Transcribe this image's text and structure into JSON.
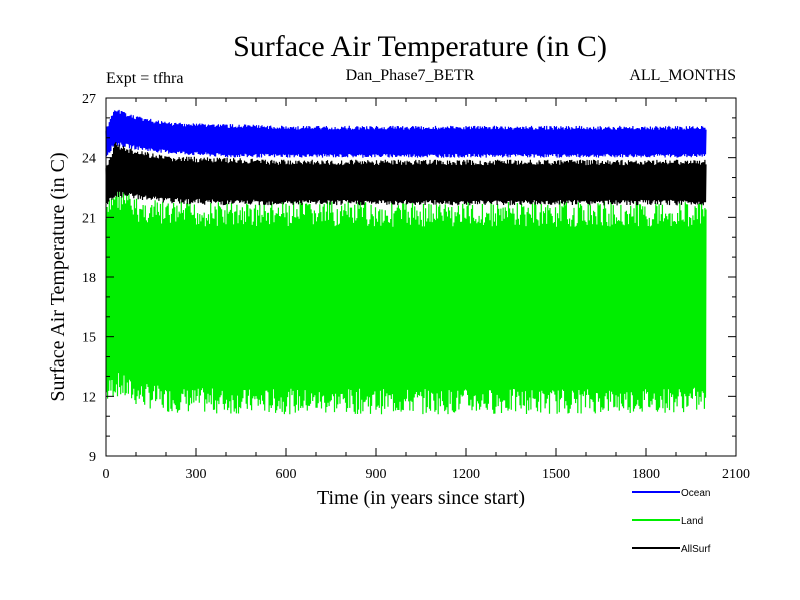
{
  "chart_data": {
    "type": "line",
    "title": "Surface Air Temperature (in C)",
    "subtitle_left": "Expt = tfhra",
    "subtitle_center": "Dan_Phase7_BETR",
    "subtitle_right": "ALL_MONTHS",
    "xlabel": "Time (in years since start)",
    "ylabel": "Surface Air Temperature (in C)",
    "xlim": [
      0,
      2100
    ],
    "ylim": [
      9,
      27
    ],
    "xticks": [
      0,
      300,
      600,
      900,
      1200,
      1500,
      1800,
      2100
    ],
    "yticks": [
      9,
      12,
      15,
      18,
      21,
      24,
      27
    ],
    "x_range_data": [
      0,
      2000
    ],
    "series": [
      {
        "name": "Ocean",
        "color": "#0000ff",
        "envelope": {
          "x": [
            0,
            30,
            100,
            200,
            400,
            600,
            1000,
            1500,
            2000
          ],
          "upper": [
            25.5,
            26.5,
            26.1,
            25.8,
            25.7,
            25.6,
            25.6,
            25.6,
            25.6
          ],
          "lower": [
            24.0,
            24.6,
            24.4,
            24.2,
            24.0,
            24.0,
            24.0,
            24.0,
            24.0
          ]
        }
      },
      {
        "name": "Land",
        "color": "#00ee00",
        "envelope": {
          "x": [
            0,
            30,
            100,
            200,
            400,
            600,
            1000,
            1500,
            2000
          ],
          "upper": [
            21.5,
            22.8,
            22.0,
            21.8,
            21.8,
            21.8,
            21.8,
            21.8,
            21.8
          ],
          "lower": [
            11.5,
            12.0,
            11.5,
            11.2,
            11.1,
            11.1,
            11.1,
            11.1,
            11.2
          ]
        }
      },
      {
        "name": "AllSurf",
        "color": "#000000",
        "envelope": {
          "x": [
            0,
            30,
            100,
            200,
            400,
            600,
            1000,
            1500,
            2000
          ],
          "upper": [
            23.5,
            24.8,
            24.4,
            24.1,
            24.0,
            23.9,
            23.9,
            23.9,
            23.9
          ],
          "lower": [
            21.5,
            22.0,
            21.9,
            21.7,
            21.6,
            21.6,
            21.6,
            21.6,
            21.6
          ]
        }
      }
    ],
    "legend_position": "bottom-right"
  }
}
